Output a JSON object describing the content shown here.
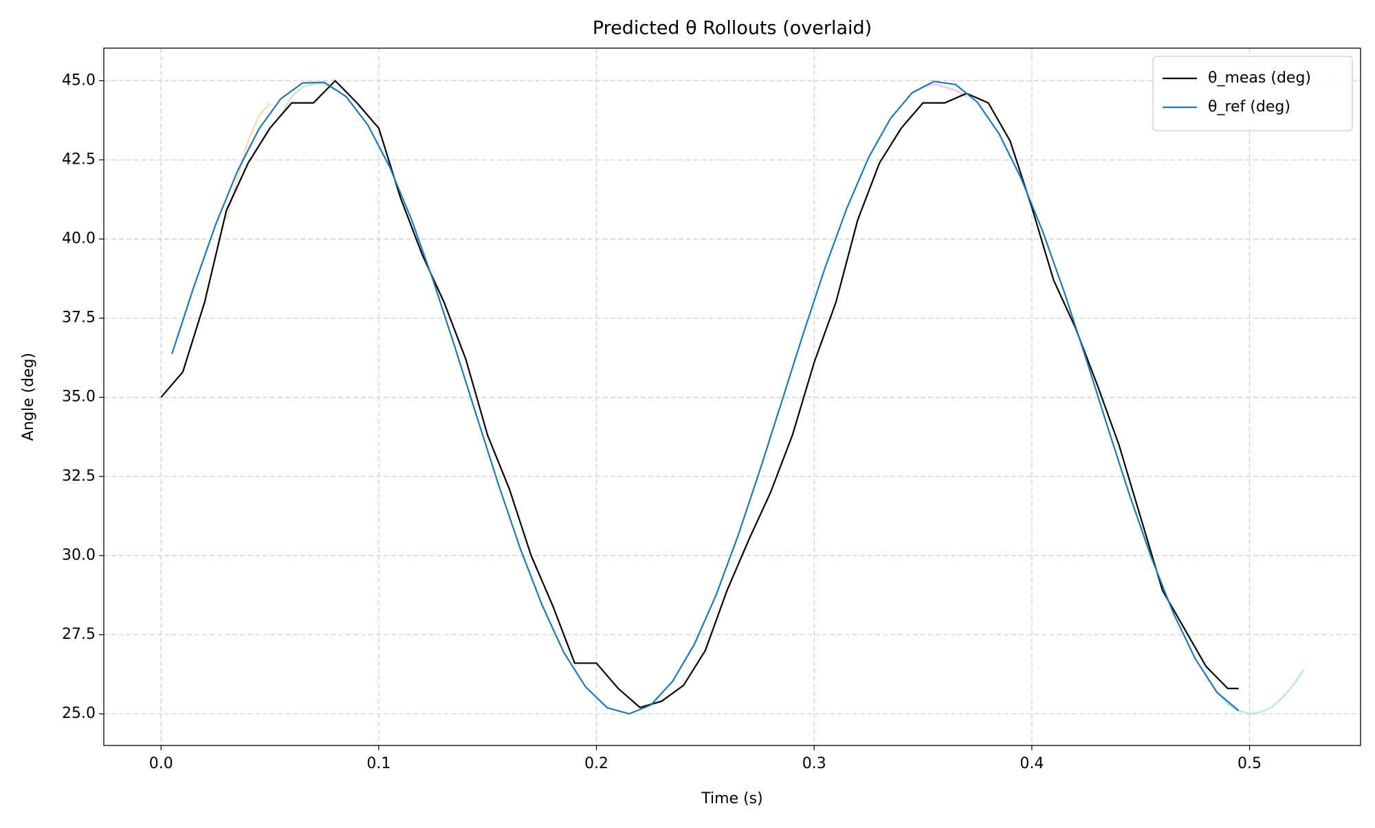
{
  "chart_data": {
    "type": "line",
    "title": "Predicted θ Rollouts (overlaid)",
    "xlabel": "Time (s)",
    "ylabel": "Angle (deg)",
    "xlim": [
      -0.0263,
      0.551
    ],
    "ylim": [
      24.0,
      46.03
    ],
    "xticks": [
      {
        "value": 0,
        "label": "0.0"
      },
      0.1,
      0.2,
      0.3,
      0.4,
      0.5
    ],
    "yticks": [
      {
        "value": 25,
        "label": "25.0"
      },
      27.5,
      {
        "value": 30,
        "label": "30.0"
      },
      32.5,
      {
        "value": 35,
        "label": "35.0"
      },
      37.5,
      {
        "value": 40,
        "label": "40.0"
      },
      42.5,
      {
        "value": 45,
        "label": "45.0"
      }
    ],
    "grid": true,
    "legend": "upper right",
    "series": [
      {
        "color": "#a6d89a",
        "opacity": 0.6,
        "x": [
          0.055,
          0.06,
          0.065,
          0.07,
          0.075,
          0.08
        ],
        "values": [
          43.9,
          44.5,
          44.8,
          44.9,
          44.9,
          44.7
        ]
      },
      {
        "color": "#f5c48a",
        "opacity": 0.6,
        "x": [
          0.03,
          0.035,
          0.04,
          0.045,
          0.05
        ],
        "values": [
          40.6,
          41.9,
          43.1,
          43.9,
          44.3
        ]
      },
      {
        "color": "#e9a7c9",
        "opacity": 0.6,
        "x": [
          0.345,
          0.35,
          0.355,
          0.36,
          0.365,
          0.37
        ],
        "values": [
          44.6,
          44.8,
          44.9,
          44.8,
          44.7,
          44.5
        ]
      },
      {
        "color": "#9fdde6",
        "opacity": 0.7,
        "x": [
          0.48,
          0.485,
          0.49,
          0.495,
          0.5,
          0.505,
          0.51,
          0.515,
          0.52,
          0.525
        ],
        "values": [
          26.2,
          25.7,
          25.3,
          25.1,
          25.0,
          25.05,
          25.2,
          25.5,
          25.9,
          26.4
        ]
      },
      {
        "name": "θ_meas (deg)",
        "color": "#000000",
        "x": [
          0,
          0.01,
          0.02,
          0.03,
          0.04,
          0.05,
          0.06,
          0.07,
          0.08,
          0.09,
          0.1,
          0.11,
          0.12,
          0.13,
          0.14,
          0.15,
          0.16,
          0.17,
          0.18,
          0.19,
          0.2,
          0.21,
          0.22,
          0.23,
          0.24,
          0.25,
          0.26,
          0.27,
          0.28,
          0.29,
          0.3,
          0.31,
          0.32,
          0.33,
          0.34,
          0.35,
          0.36,
          0.37,
          0.38,
          0.39,
          0.4,
          0.41,
          0.42,
          0.43,
          0.44,
          0.45,
          0.46,
          0.47,
          0.48,
          0.49,
          0.495
        ],
        "values": [
          35.0,
          35.8,
          38.0,
          40.9,
          42.4,
          43.5,
          44.3,
          44.3,
          45.0,
          44.3,
          43.5,
          41.3,
          39.5,
          38.0,
          36.2,
          33.8,
          32.1,
          30.0,
          28.4,
          26.6,
          26.6,
          25.8,
          25.2,
          25.4,
          25.9,
          27.0,
          28.9,
          30.5,
          32.0,
          33.8,
          36.1,
          38.0,
          40.6,
          42.4,
          43.5,
          44.3,
          44.3,
          44.6,
          44.3,
          43.1,
          41.0,
          38.7,
          37.2,
          35.4,
          33.5,
          31.2,
          28.9,
          27.7,
          26.5,
          25.8,
          25.8
        ]
      },
      {
        "name": "θ_ref (deg)",
        "color": "#1f77b4",
        "x": [
          0.005,
          0.015,
          0.025,
          0.035,
          0.045,
          0.055,
          0.065,
          0.075,
          0.085,
          0.095,
          0.105,
          0.115,
          0.125,
          0.135,
          0.145,
          0.155,
          0.165,
          0.175,
          0.185,
          0.195,
          0.205,
          0.215,
          0.225,
          0.235,
          0.245,
          0.255,
          0.265,
          0.275,
          0.285,
          0.295,
          0.305,
          0.315,
          0.325,
          0.335,
          0.345,
          0.355,
          0.365,
          0.375,
          0.385,
          0.395,
          0.405,
          0.415,
          0.425,
          0.435,
          0.445,
          0.455,
          0.465,
          0.475,
          0.485,
          0.495
        ],
        "values": [
          36.37,
          38.48,
          40.44,
          42.13,
          43.48,
          44.43,
          44.93,
          44.95,
          44.5,
          43.6,
          42.28,
          40.62,
          38.69,
          36.58,
          34.4,
          32.24,
          30.22,
          28.44,
          26.94,
          25.85,
          25.19,
          25.0,
          25.28,
          26.03,
          27.2,
          28.76,
          30.62,
          32.68,
          34.84,
          37.01,
          39.09,
          40.97,
          42.57,
          43.8,
          44.62,
          44.98,
          44.88,
          44.32,
          43.32,
          41.93,
          40.24,
          38.3,
          36.2,
          34.02,
          31.89,
          29.92,
          28.18,
          26.75,
          25.68,
          25.1
        ]
      }
    ]
  }
}
